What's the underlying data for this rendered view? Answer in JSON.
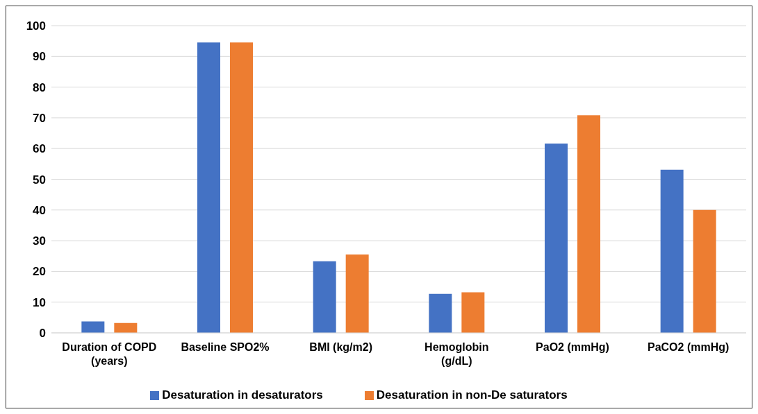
{
  "chart_data": {
    "type": "bar",
    "categories": [
      "Duration of COPD (years)",
      "Baseline SPO2%",
      "BMI (kg/m2)",
      "Hemoglobin (g/dL)",
      "PaO2 (mmHg)",
      "PaCO2 (mmHg)"
    ],
    "series": [
      {
        "name": "Desaturation in desaturators",
        "color": "#4472c4",
        "values": [
          3.7,
          94.5,
          23.3,
          12.7,
          61.6,
          53.1
        ]
      },
      {
        "name": "Desaturation in non-De saturators",
        "color": "#ed7d31",
        "values": [
          3.2,
          94.5,
          25.5,
          13.2,
          70.8,
          40.0
        ]
      }
    ],
    "ylim": [
      0,
      100
    ],
    "yticks": [
      0,
      10,
      20,
      30,
      40,
      50,
      60,
      70,
      80,
      90,
      100
    ],
    "grid": "y",
    "legend": "bottom"
  }
}
